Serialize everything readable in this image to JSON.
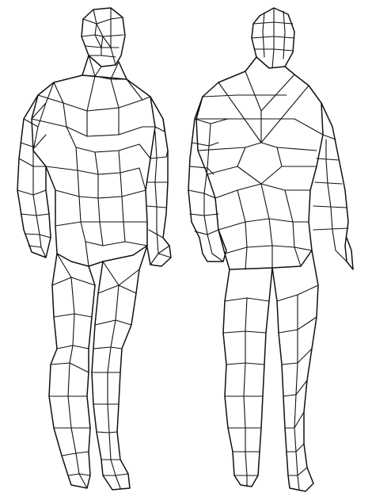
{
  "image": {
    "subject": "",
    "figures": [
      {
        "id": "front-view"
      },
      {
        "id": "back-view"
      }
    ]
  },
  "colors": {
    "background": "#ffffff",
    "line": "#111111"
  }
}
